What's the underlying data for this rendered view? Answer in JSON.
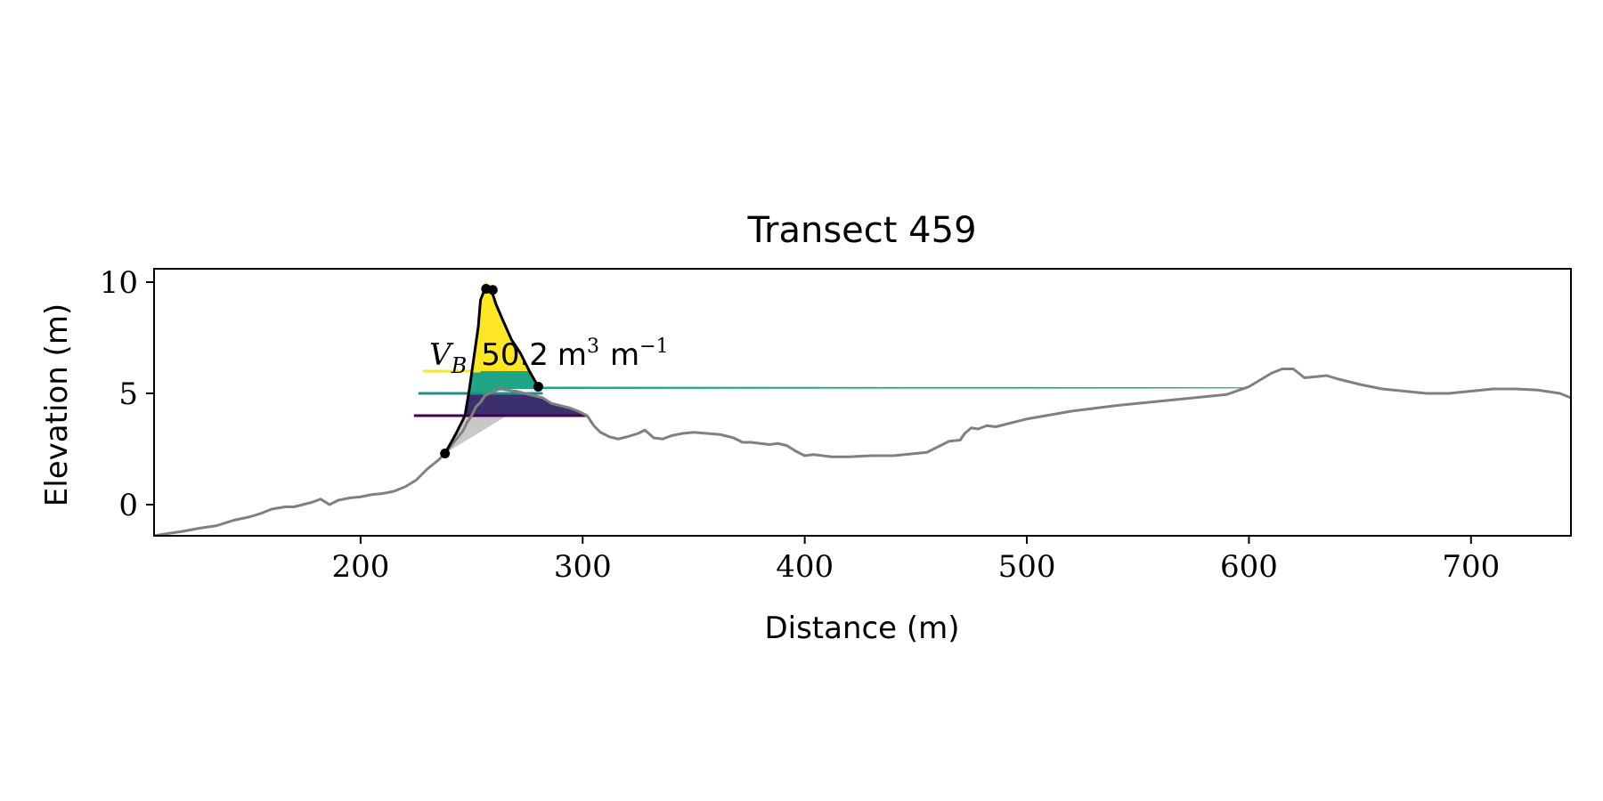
{
  "chart_data": {
    "type": "area",
    "title": "Transect 459",
    "xlabel": "Distance (m)",
    "ylabel": "Elevation (m)",
    "xlim": [
      107,
      745
    ],
    "ylim": [
      -1.4,
      10.6
    ],
    "xticks": [
      200,
      300,
      400,
      500,
      600,
      700
    ],
    "xtick_labels": [
      "200",
      "300",
      "400",
      "500",
      "600",
      "700"
    ],
    "yticks": [
      0,
      5,
      10
    ],
    "ytick_labels": [
      "0",
      "5",
      "10"
    ],
    "grid": false,
    "annotation": {
      "symbol": "V",
      "subscript": "B",
      "value": "50.2",
      "unit_m": "m",
      "unit_exp1": "3",
      "unit_m2": "m",
      "unit_exp2": "−1"
    },
    "profile": {
      "color": "#808080",
      "x": [
        107,
        113,
        120,
        128,
        135,
        143,
        150,
        155,
        160,
        166,
        170,
        178,
        182,
        186,
        190,
        195,
        200,
        205,
        210,
        215,
        220,
        225,
        230,
        235,
        238,
        242,
        246,
        248,
        250,
        252,
        254,
        256,
        258,
        260,
        263,
        266,
        270,
        274,
        278,
        282,
        286,
        290,
        294,
        298,
        302,
        305,
        308,
        312,
        316,
        320,
        325,
        328,
        332,
        336,
        340,
        345,
        350,
        356,
        362,
        368,
        372,
        376,
        380,
        384,
        388,
        392,
        396,
        400,
        404,
        408,
        412,
        420,
        430,
        440,
        450,
        455,
        460,
        465,
        470,
        472,
        475,
        478,
        482,
        486,
        490,
        500,
        520,
        540,
        560,
        580,
        590,
        600,
        605,
        610,
        615,
        620,
        625,
        630,
        635,
        640,
        650,
        660,
        670,
        680,
        690,
        700,
        710,
        720,
        730,
        740,
        745
      ],
      "y": [
        -1.4,
        -1.3,
        -1.2,
        -1.05,
        -0.95,
        -0.7,
        -0.55,
        -0.4,
        -0.2,
        -0.1,
        -0.1,
        0.1,
        0.25,
        0.0,
        0.2,
        0.3,
        0.35,
        0.45,
        0.5,
        0.6,
        0.8,
        1.1,
        1.6,
        2.0,
        2.3,
        2.8,
        3.3,
        3.7,
        4.0,
        4.4,
        4.6,
        4.9,
        5.0,
        5.1,
        5.2,
        5.15,
        5.1,
        5.0,
        4.9,
        4.8,
        4.55,
        4.45,
        4.35,
        4.2,
        4.0,
        3.55,
        3.25,
        3.05,
        2.95,
        3.05,
        3.2,
        3.35,
        3.0,
        2.95,
        3.1,
        3.2,
        3.25,
        3.2,
        3.15,
        3.0,
        2.8,
        2.8,
        2.75,
        2.7,
        2.75,
        2.65,
        2.4,
        2.2,
        2.25,
        2.2,
        2.15,
        2.15,
        2.2,
        2.2,
        2.3,
        2.35,
        2.6,
        2.85,
        2.9,
        3.2,
        3.45,
        3.4,
        3.55,
        3.5,
        3.6,
        3.85,
        4.2,
        4.45,
        4.65,
        4.85,
        4.95,
        5.3,
        5.6,
        5.9,
        6.1,
        6.1,
        5.7,
        5.75,
        5.8,
        5.65,
        5.4,
        5.2,
        5.1,
        5.0,
        5.0,
        5.1,
        5.2,
        5.2,
        5.15,
        5.0,
        4.8
      ]
    },
    "dune_outline": {
      "color": "#000000",
      "x": [
        238,
        243,
        247,
        249,
        251,
        253,
        254,
        256,
        257,
        259,
        261,
        264,
        268,
        272,
        276,
        280
      ],
      "y": [
        2.3,
        3.2,
        4.0,
        5.2,
        6.6,
        8.0,
        9.2,
        9.7,
        9.7,
        9.6,
        9.0,
        8.3,
        7.4,
        6.8,
        6.0,
        5.3
      ]
    },
    "markers": {
      "x": [
        238,
        256.5,
        259.5,
        280
      ],
      "y": [
        2.3,
        9.7,
        9.65,
        5.3
      ]
    },
    "base_fill": {
      "color": "#c8c8c8",
      "from_x": 238,
      "from_y": 2.3,
      "to_x": 266,
      "to_y": 4.0
    },
    "levels": [
      {
        "color": "#fde725",
        "y_bottom": 6.0,
        "y_top": 10.0,
        "line_x": [
          228,
          254
        ]
      },
      {
        "color": "#21a685",
        "y_bottom": 5.0,
        "y_top": 6.0,
        "line_x": [
          226,
          282
        ]
      },
      {
        "color": "#3b2f6e",
        "y_bottom": 4.0,
        "y_top": 5.0,
        "line_x": [
          224,
          302
        ]
      }
    ],
    "level_line_colors": [
      "#fde725",
      "#21918c",
      "#440154"
    ]
  }
}
